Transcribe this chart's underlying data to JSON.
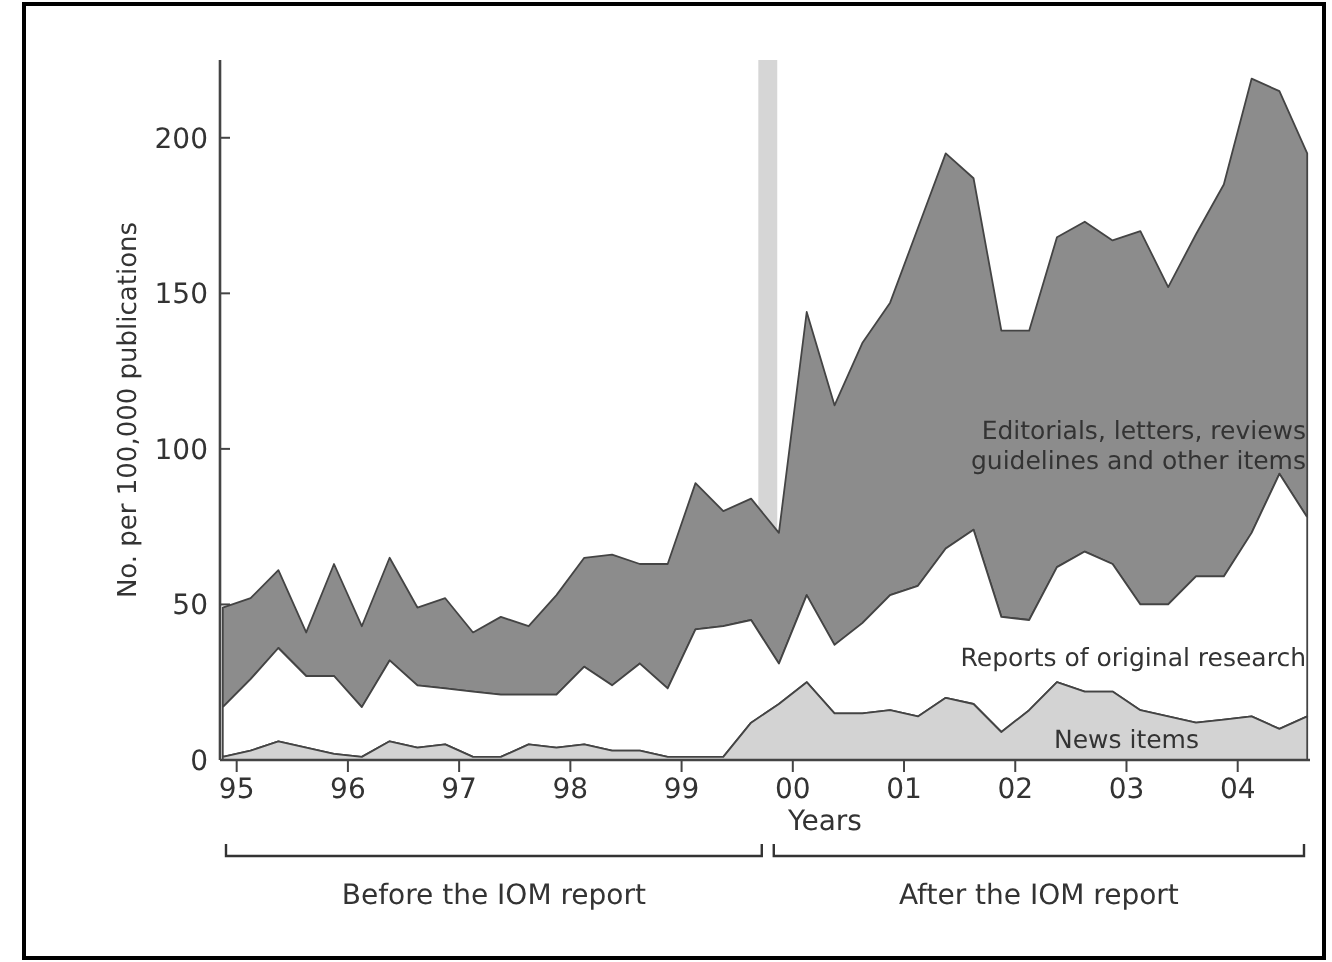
{
  "chart_data": {
    "type": "area",
    "stacked": true,
    "xlabel": "Years",
    "ylabel": "No. per 100,000 publications",
    "x": [
      1994.875,
      1995.125,
      1995.375,
      1995.625,
      1995.875,
      1996.125,
      1996.375,
      1996.625,
      1996.875,
      1997.125,
      1997.375,
      1997.625,
      1997.875,
      1998.125,
      1998.375,
      1998.625,
      1998.875,
      1999.125,
      1999.375,
      1999.625,
      1999.875,
      2000.125,
      2000.375,
      2000.625,
      2000.875,
      2001.125,
      2001.375,
      2001.625,
      2001.875,
      2002.125,
      2002.375,
      2002.625,
      2002.875,
      2003.125,
      2003.375,
      2003.625,
      2003.875,
      2004.125,
      2004.375,
      2004.625
    ],
    "xlim": [
      1994.85,
      2004.65
    ],
    "xticks": [
      {
        "value": 1995,
        "label": "95"
      },
      {
        "value": 1996,
        "label": "96"
      },
      {
        "value": 1997,
        "label": "97"
      },
      {
        "value": 1998,
        "label": "98"
      },
      {
        "value": 1999,
        "label": "99"
      },
      {
        "value": 2000,
        "label": "00"
      },
      {
        "value": 2001,
        "label": "01"
      },
      {
        "value": 2002,
        "label": "02"
      },
      {
        "value": 2003,
        "label": "03"
      },
      {
        "value": 2004,
        "label": "04"
      }
    ],
    "ylim": [
      0,
      225
    ],
    "yticks": [
      0,
      50,
      100,
      150,
      200
    ],
    "grid": false,
    "series": [
      {
        "name": "News items",
        "color": "#d3d3d3",
        "values": [
          1,
          3,
          6,
          4,
          2,
          1,
          6,
          4,
          5,
          1,
          1,
          5,
          4,
          5,
          3,
          3,
          1,
          1,
          1,
          12,
          18,
          25,
          15,
          15,
          16,
          14,
          20,
          18,
          9,
          16,
          25,
          22,
          22,
          16,
          14,
          12,
          13,
          14,
          10,
          14
        ]
      },
      {
        "name": "Reports of original research",
        "color": "#ffffff",
        "values": [
          16,
          23,
          30,
          23,
          25,
          16,
          26,
          20,
          18,
          21,
          20,
          16,
          17,
          25,
          21,
          28,
          22,
          41,
          42,
          33,
          13,
          28,
          22,
          29,
          37,
          42,
          48,
          56,
          37,
          29,
          37,
          45,
          41,
          34,
          36,
          47,
          46,
          59,
          82,
          64
        ]
      },
      {
        "name": "Editorials, letters, reviews guidelines and other items",
        "color": "#8c8c8c",
        "values": [
          32,
          26,
          25,
          14,
          36,
          26,
          33,
          25,
          29,
          19,
          25,
          22,
          32,
          35,
          42,
          32,
          40,
          47,
          37,
          39,
          42,
          91,
          77,
          90,
          94,
          115,
          127,
          113,
          92,
          93,
          106,
          106,
          104,
          120,
          102,
          110,
          126,
          146,
          123,
          117
        ]
      }
    ],
    "bands": [
      {
        "axis": "x",
        "from": 1999.69,
        "to": 1999.86,
        "color": "#d6d6d6"
      }
    ],
    "annotations": [
      "Before the IOM report",
      "After the IOM report"
    ]
  }
}
